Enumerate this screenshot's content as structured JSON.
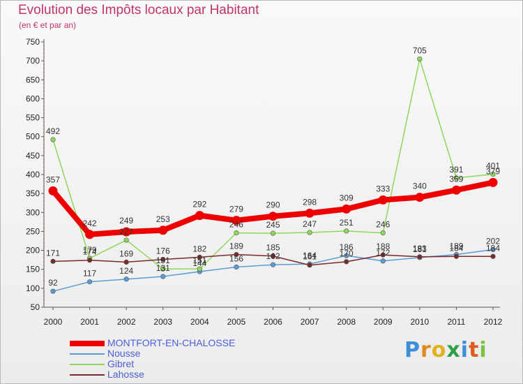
{
  "header": {
    "title": "Evolution des Impôts locaux par Habitant",
    "subtitle": "(en € et par an)"
  },
  "brand": {
    "name": "Proxiti",
    "letters": [
      {
        "char": "P",
        "color": "#3a8fd8"
      },
      {
        "char": "r",
        "color": "#e08a1e"
      },
      {
        "char": "o",
        "color": "#e0b21e"
      },
      {
        "char": "x",
        "color": "#2f9e44"
      },
      {
        "char": "i",
        "color": "#3a8fd8"
      },
      {
        "char": "t",
        "color": "#e05a1e"
      },
      {
        "char": "i",
        "color": "#7cc142"
      }
    ]
  },
  "chart_data": {
    "type": "line",
    "title": "Evolution des Impôts locaux par Habitant",
    "subtitle": "(en € et par an)",
    "xlabel": "",
    "ylabel": "",
    "categories": [
      "2000",
      "2001",
      "2002",
      "2003",
      "2004",
      "2005",
      "2006",
      "2007",
      "2008",
      "2009",
      "2010",
      "2011",
      "2012"
    ],
    "ylim": [
      50,
      750
    ],
    "yticks": [
      50,
      100,
      150,
      200,
      250,
      300,
      350,
      400,
      450,
      500,
      550,
      600,
      650,
      700,
      750
    ],
    "grid": false,
    "legend_position": "bottom-left",
    "series": [
      {
        "name": "MONTFORT-EN-CHALOSSE",
        "color": "#ee0000",
        "width": 8,
        "values": [
          357,
          242,
          249,
          253,
          292,
          279,
          290,
          298,
          309,
          333,
          340,
          359,
          379
        ],
        "labels_shown": [
          357,
          242,
          249,
          253,
          292,
          279,
          290,
          298,
          309,
          333,
          340,
          359,
          379
        ]
      },
      {
        "name": "Nousse",
        "color": "#5b9bd5",
        "width": 1.5,
        "values": [
          92,
          117,
          124,
          131,
          144,
          156,
          162,
          164,
          186,
          172,
          181,
          189,
          202
        ],
        "labels_shown": [
          92,
          117,
          124,
          131,
          144,
          156,
          162,
          164,
          186,
          172,
          181,
          189,
          202
        ]
      },
      {
        "name": "Gibret",
        "color": "#8dd85a",
        "width": 1.5,
        "values": [
          492,
          179,
          227,
          151,
          151,
          246,
          245,
          247,
          251,
          246,
          705,
          391,
          401
        ],
        "labels_shown": [
          492,
          179,
          227,
          151,
          151,
          246,
          245,
          247,
          251,
          246,
          705,
          391,
          401
        ]
      },
      {
        "name": "Lahosse",
        "color": "#7a2a2a",
        "width": 1.5,
        "values": [
          171,
          174,
          169,
          176,
          182,
          189,
          185,
          161,
          170,
          188,
          183,
          184,
          184
        ],
        "labels_shown": [
          171,
          174,
          169,
          176,
          182,
          189,
          185,
          161,
          170,
          188,
          183,
          184,
          184
        ]
      }
    ]
  }
}
